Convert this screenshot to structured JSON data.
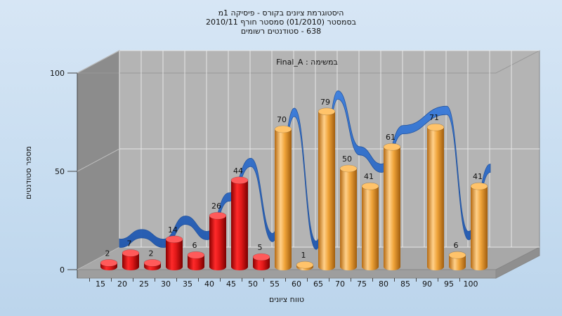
{
  "chart_data": {
    "type": "bar",
    "title_lines": [
      "היסטוגרמת ציונים בקורס - פיסיקה 1מ",
      "בסמסטר  (01/2010)  סמסטר חורף  2010/11",
      "638 - סטודנטים רשומים"
    ],
    "annotation": "Final_A : במשימה",
    "xlabel": "טווח ציונים",
    "ylabel": "מספר סטודנטים",
    "ylim": [
      0,
      100
    ],
    "yticks": [
      0,
      50,
      100
    ],
    "categories": [
      "15",
      "20",
      "25",
      "30",
      "35",
      "40",
      "45",
      "50",
      "55",
      "60",
      "65",
      "70",
      "75",
      "80",
      "85",
      "90",
      "95",
      "100"
    ],
    "values": [
      2,
      7,
      2,
      14,
      6,
      26,
      44,
      5,
      70,
      1,
      79,
      50,
      41,
      61,
      null,
      71,
      6,
      41
    ],
    "bar_colors": [
      "red",
      "red",
      "red",
      "red",
      "red",
      "red",
      "red",
      "red",
      "orange",
      "orange",
      "orange",
      "orange",
      "orange",
      "orange",
      "orange",
      "orange",
      "orange",
      "orange"
    ],
    "colors": {
      "red": "#e01818",
      "orange": "#f0a43a",
      "ribbon": "#2f6fd0",
      "ribbon_shadow": "#5a5a5a",
      "back_wall": "#b4b4b4",
      "left_wall": "#8c8c8c",
      "floor": "#a8a8a8",
      "grid": "#e6e6e6"
    },
    "grid": true
  }
}
